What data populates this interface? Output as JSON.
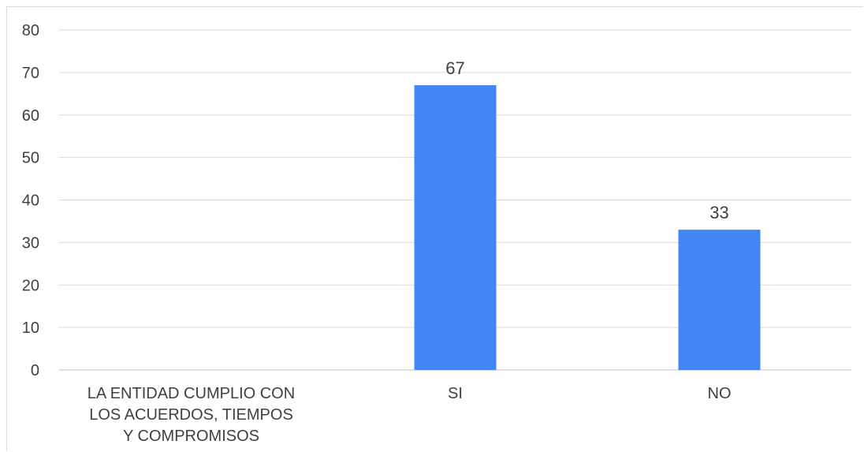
{
  "chart_data": {
    "type": "bar",
    "categories": [
      [
        "LA ENTIDAD CUMPLIO CON",
        "LOS ACUERDOS, TIEMPOS",
        "Y COMPROMISOS"
      ],
      [
        "SI"
      ],
      [
        "NO"
      ]
    ],
    "values": [
      null,
      67,
      33
    ],
    "data_labels": [
      "",
      "67",
      "33"
    ],
    "ylim": [
      0,
      80
    ],
    "yticks": [
      0,
      10,
      20,
      30,
      40,
      50,
      60,
      70,
      80
    ],
    "ytick_labels": [
      "0",
      "10",
      "20",
      "30",
      "40",
      "50",
      "60",
      "70",
      "80"
    ],
    "grid": true,
    "legend": "none",
    "colors": {
      "bar": "#4285f4",
      "grid": "#d9d9d9",
      "axis": "#bfbfbf",
      "text": "#404040"
    }
  }
}
